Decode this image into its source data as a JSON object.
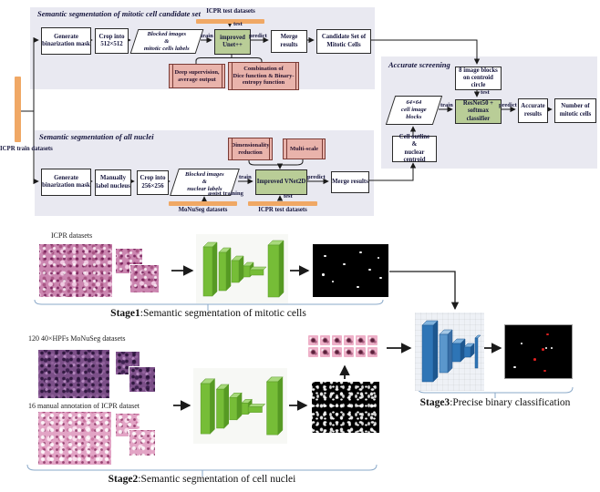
{
  "colors": {
    "panel_bg": "#e9e9f1",
    "model_green": "#b9cd97",
    "annotation_pink": "#e9b3ab",
    "annotation_border": "#7a3b35",
    "dataset_orange": "#f0a865",
    "text_navy": "#14143c",
    "brace_blue": "#8aa9c9",
    "net_green": "#76bd37",
    "net_blue": "#2e75b6",
    "result_red_dot": "#e02020"
  },
  "left_source": {
    "label": "ICPR  train\ndatasets"
  },
  "fc1": {
    "title": "Semantic segmentation of mitotic cell candidate set",
    "test_dataset": "ICPR test datasets",
    "nodes": {
      "binarize": "Generate\nbinarization mask",
      "crop": "Crop into\n512×512",
      "blocked": "Blocked images\n&\nmitotic cells labels",
      "model": "improved\nUnet++",
      "merge": "Merge results",
      "candidate": "Candidate Set of\nMitotic Cells",
      "tip1": "Deep supervision,\naverage output",
      "tip2": "Combination of\nDice function & Binary-\nentropy function"
    },
    "labels": {
      "train": "train",
      "test": "test",
      "predict": "predict"
    }
  },
  "fc2": {
    "title": "Semantic segmentation of all nuclei",
    "nodes": {
      "binarize": "Generate\nbinarization mask",
      "manual": "Manually\nlabel nucleus",
      "crop": "Crop into\n256×256",
      "blocked": "Blocked images\n&\nnuclear labels",
      "model": "Improved VNet2D",
      "merge": "Merge results",
      "tip1": "Dimensionality\nreduction",
      "tip2": "Multi-scale"
    },
    "datasets": {
      "monuseg": "MoNuSeg datasets",
      "icpr_test": "ICPR test datasets"
    },
    "labels": {
      "train": "train",
      "test": "test",
      "predict": "predict",
      "assist": "assist training"
    }
  },
  "fc3": {
    "title": "Accurate screening",
    "nodes": {
      "blocks8": "8 image blocks\non centroid circle",
      "cellblocks": "64×64\ncell image\nblocks",
      "model": "ResNet50 +\nsoftmax classifier",
      "accurate": "Accurate\nresults",
      "number": "Number of\nmitotic cells",
      "outline": "Cell outline\n&\nnuclear centroid"
    },
    "labels": {
      "train": "train",
      "test": "test",
      "predict": "predict"
    }
  },
  "stages": {
    "s1": {
      "dataset_label": "ICPR datasets",
      "caption_bold": "Stage1",
      "caption_rest": ":Semantic segmentation of mitotic cells"
    },
    "s2": {
      "dataset_label_1": "120 40×HPFs  MoNuSeg datasets",
      "dataset_label_2": "16 manual annotation of ICPR dataset",
      "caption_bold": "Stage2",
      "caption_rest": ":Semantic segmentation of cell nuclei"
    },
    "s3": {
      "caption_bold": "Stage3",
      "caption_rest": ":Precise binary classification"
    }
  },
  "masks": {
    "stage1_white_dots": [
      [
        15,
        20
      ],
      [
        62,
        13
      ],
      [
        85,
        24
      ],
      [
        40,
        36
      ],
      [
        74,
        47
      ],
      [
        25,
        69
      ],
      [
        58,
        79
      ],
      [
        88,
        62
      ],
      [
        12,
        56
      ]
    ],
    "stage3_red_dots": [
      [
        62,
        15
      ],
      [
        55,
        43
      ],
      [
        42,
        62
      ],
      [
        57,
        84
      ]
    ],
    "stage3_white_dots": [
      [
        23,
        33
      ],
      [
        60,
        41
      ],
      [
        68,
        41
      ],
      [
        13,
        77
      ]
    ]
  },
  "patches": {
    "rows": 2,
    "cols": 6
  }
}
